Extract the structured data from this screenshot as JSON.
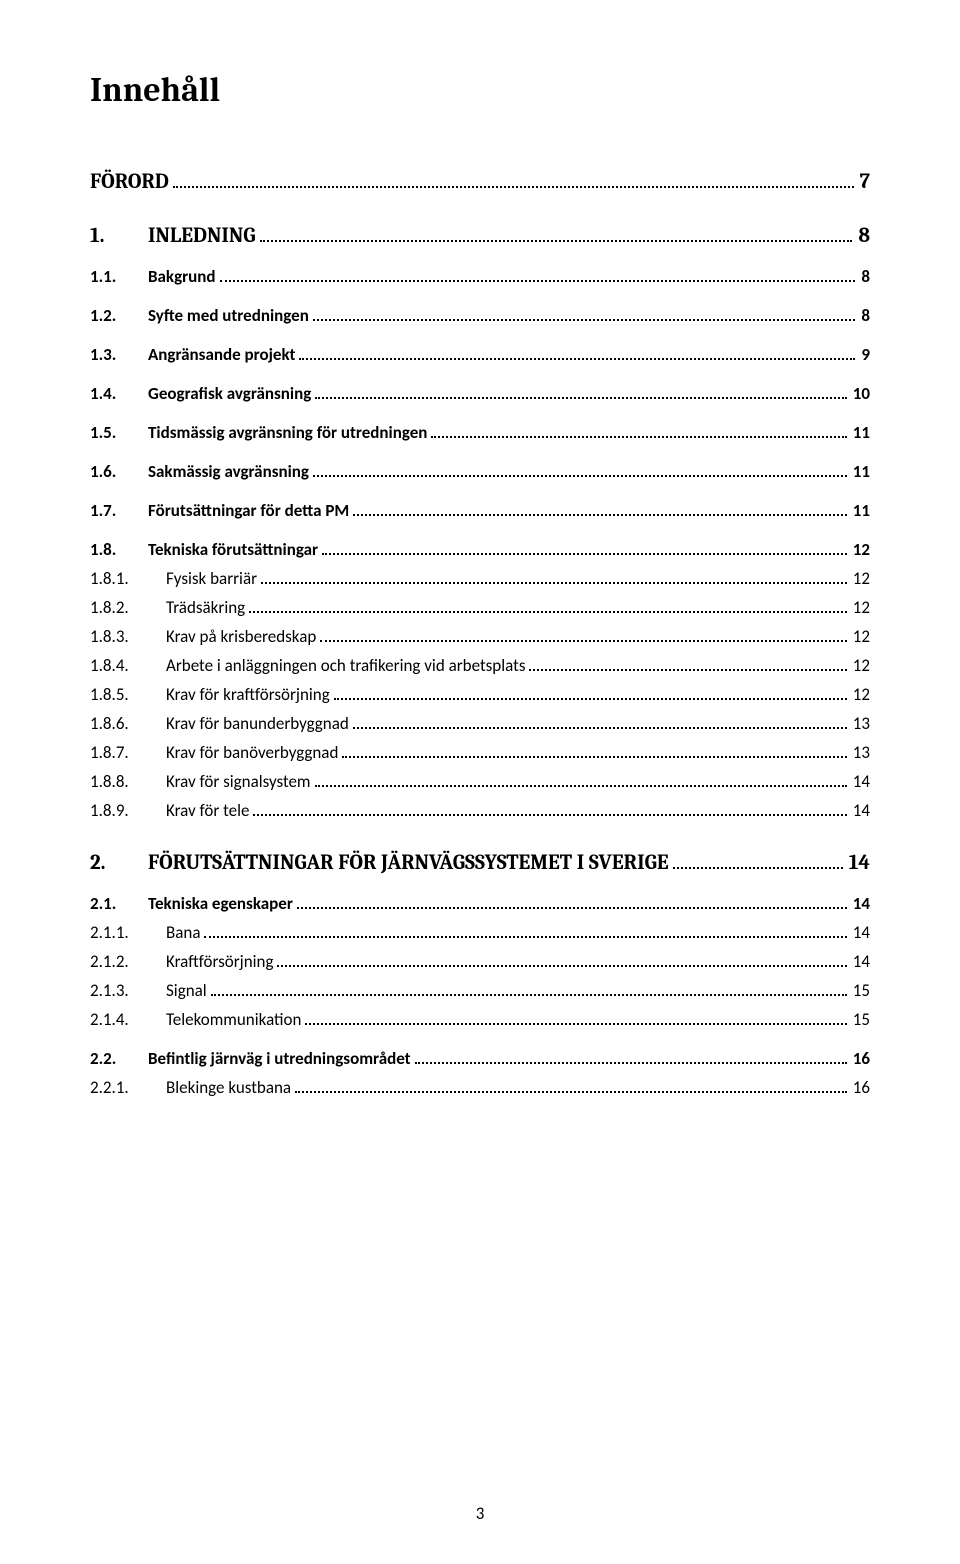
{
  "doc": {
    "title": "Innehåll",
    "page_number": "3"
  },
  "toc": [
    {
      "level": 1,
      "num": "",
      "title": "FÖRORD",
      "page": "7",
      "numbered": false
    },
    {
      "level": 1,
      "num": "1.",
      "title": "INLEDNING",
      "page": "8",
      "numbered": true
    },
    {
      "level": 2,
      "num": "1.1.",
      "title": "Bakgrund",
      "page": "8"
    },
    {
      "level": 2,
      "num": "1.2.",
      "title": "Syfte med utredningen",
      "page": "8"
    },
    {
      "level": 2,
      "num": "1.3.",
      "title": "Angränsande projekt",
      "page": "9"
    },
    {
      "level": 2,
      "num": "1.4.",
      "title": "Geografisk avgränsning",
      "page": "10"
    },
    {
      "level": 2,
      "num": "1.5.",
      "title": "Tidsmässig avgränsning för utredningen",
      "page": "11"
    },
    {
      "level": 2,
      "num": "1.6.",
      "title": "Sakmässig avgränsning",
      "page": "11"
    },
    {
      "level": 2,
      "num": "1.7.",
      "title": "Förutsättningar för detta PM",
      "page": "11"
    },
    {
      "level": 2,
      "num": "1.8.",
      "title": "Tekniska förutsättningar",
      "page": "12"
    },
    {
      "level": 3,
      "num": "1.8.1.",
      "title": "Fysisk barriär",
      "page": "12"
    },
    {
      "level": 3,
      "num": "1.8.2.",
      "title": "Trädsäkring",
      "page": "12"
    },
    {
      "level": 3,
      "num": "1.8.3.",
      "title": "Krav på krisberedskap",
      "page": "12"
    },
    {
      "level": 3,
      "num": "1.8.4.",
      "title": "Arbete i anläggningen och trafikering vid arbetsplats",
      "page": "12"
    },
    {
      "level": 3,
      "num": "1.8.5.",
      "title": "Krav för kraftförsörjning",
      "page": "12"
    },
    {
      "level": 3,
      "num": "1.8.6.",
      "title": "Krav för banunderbyggnad",
      "page": "13"
    },
    {
      "level": 3,
      "num": "1.8.7.",
      "title": "Krav för banöverbyggnad",
      "page": "13"
    },
    {
      "level": 3,
      "num": "1.8.8.",
      "title": "Krav för signalsystem",
      "page": "14"
    },
    {
      "level": 3,
      "num": "1.8.9.",
      "title": "Krav för tele",
      "page": "14"
    },
    {
      "level": 1,
      "num": "2.",
      "title": "FÖRUTSÄTTNINGAR FÖR JÄRNVÄGSSYSTEMET I SVERIGE",
      "page": "14",
      "numbered": true
    },
    {
      "level": 2,
      "num": "2.1.",
      "title": "Tekniska egenskaper",
      "page": "14"
    },
    {
      "level": 3,
      "num": "2.1.1.",
      "title": "Bana",
      "page": "14"
    },
    {
      "level": 3,
      "num": "2.1.2.",
      "title": "Kraftförsörjning",
      "page": "14"
    },
    {
      "level": 3,
      "num": "2.1.3.",
      "title": "Signal",
      "page": "15"
    },
    {
      "level": 3,
      "num": "2.1.4.",
      "title": "Telekommunikation",
      "page": "15"
    },
    {
      "level": 2,
      "num": "2.2.",
      "title": "Befintlig järnväg i utredningsområdet",
      "page": "16"
    },
    {
      "level": 3,
      "num": "2.2.1.",
      "title": "Blekinge kustbana",
      "page": "16"
    }
  ]
}
